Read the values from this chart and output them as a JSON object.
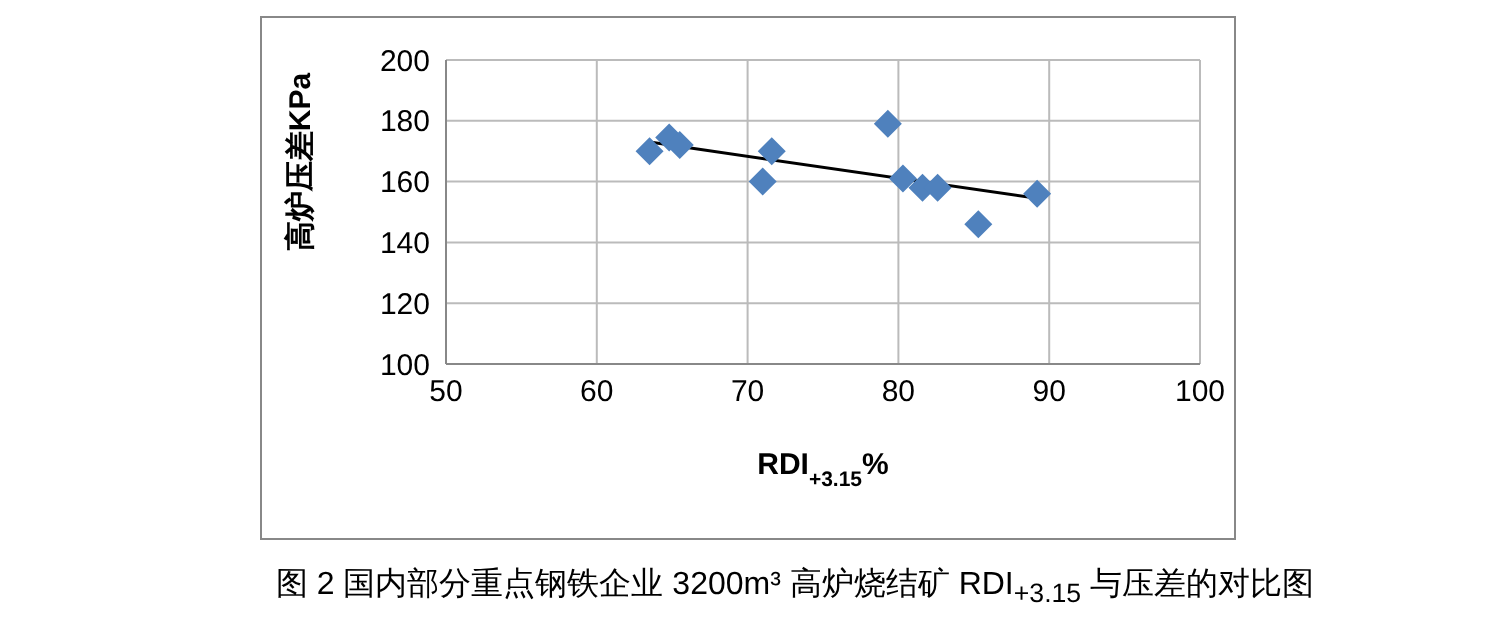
{
  "chart_data": {
    "type": "scatter",
    "title": "图 2 国内部分重点钢铁企业 3200m³ 高炉烧结矿 RDI$_{+3.15}$ 与压差的对比图",
    "xlabel": "RDI$_{+3.15}$%",
    "ylabel": "高炉压差KPa",
    "x": [
      63.5,
      64.8,
      65.5,
      71,
      71.6,
      79.3,
      80.3,
      81.6,
      82.6,
      85.3,
      89.2
    ],
    "series": [
      {
        "color": "#4f81bd",
        "values": [
          170,
          174.5,
          172,
          160,
          170,
          179,
          161,
          158,
          158,
          146,
          156
        ],
        "marker": "diamond"
      },
      {
        "type": "line",
        "color": "#000000",
        "x": [
          63.5,
          89.2
        ],
        "values": [
          173,
          154.5
        ],
        "marker": "none"
      }
    ],
    "xlim": [
      50,
      100
    ],
    "xticks": [
      50,
      60,
      70,
      80,
      90,
      100
    ],
    "ylim": [
      100,
      200
    ],
    "yticks": [
      100,
      120,
      140,
      160,
      180,
      200
    ],
    "grid": true,
    "legend": false
  }
}
